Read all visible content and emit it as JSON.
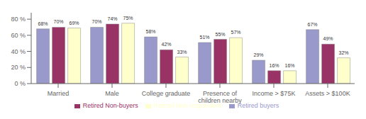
{
  "chart_data": {
    "type": "bar",
    "categories": [
      "Married",
      "Male",
      "College graduate",
      "Presence of\nchildren nearby",
      "Income > $75K",
      "Assets > $100K"
    ],
    "series": [
      {
        "name": "Retired buyers",
        "color": "#9999CC",
        "values": [
          68,
          70,
          58,
          51,
          29,
          67
        ],
        "value_labels": [
          "68%",
          "70%",
          "58%",
          "51%",
          "29%",
          "67%"
        ]
      },
      {
        "name": "Retired Non-buyers",
        "color": "#993366",
        "values": [
          70,
          74,
          42,
          55,
          16,
          49
        ],
        "value_labels": [
          "70%",
          "74%",
          "42%",
          "55%",
          "16%",
          "49%"
        ]
      },
      {
        "name": "Retired Non-responders",
        "color": "#FFFFCC",
        "values": [
          69,
          75,
          33,
          57,
          16,
          32
        ],
        "value_labels": [
          "69%",
          "75%",
          "33%",
          "57%",
          "16%",
          "32%"
        ]
      }
    ],
    "ylim": [
      0,
      88
    ],
    "yticks": [
      {
        "value": 0,
        "label": "0 %"
      },
      {
        "value": 20,
        "label": "20 %"
      },
      {
        "value": 40,
        "label": "40 %"
      },
      {
        "value": 60,
        "label": "60 %"
      },
      {
        "value": 80,
        "label": "80 %"
      }
    ],
    "data_labels": true,
    "legend": "bottom",
    "grid": false
  }
}
